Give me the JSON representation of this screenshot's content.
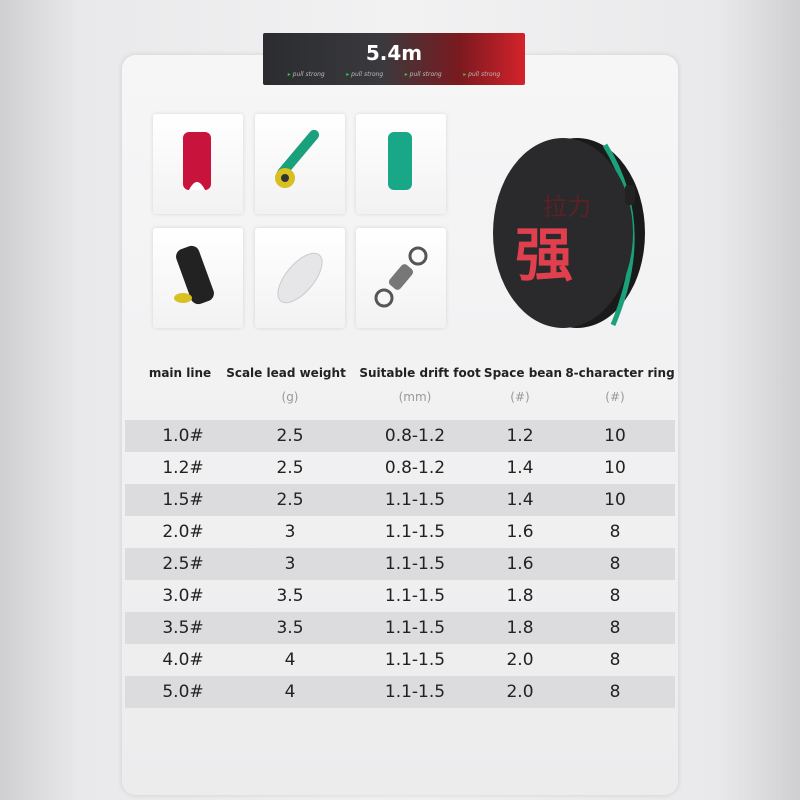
{
  "banner": {
    "title": "5.4m",
    "taglines": [
      "pull strong",
      "pull strong",
      "pull strong",
      "pull strong"
    ]
  },
  "products": [
    {
      "name": "red-space-bean",
      "color": "#c8143c"
    },
    {
      "name": "float-seat",
      "color": "#1aa07a"
    },
    {
      "name": "green-space-bean",
      "color": "#18a888"
    },
    {
      "name": "black-lead-seat",
      "color": "#222222"
    },
    {
      "name": "clear-bead",
      "color": "#dddddd"
    },
    {
      "name": "swivel-ring",
      "color": "#888888"
    }
  ],
  "reel": {
    "logo_text": "强",
    "subtitle_text": "拉力",
    "brand_color": "#e0404e"
  },
  "table": {
    "headers": [
      "main line",
      "Scale lead weight",
      "Suitable drift foot",
      "Space bean",
      "8-character ring"
    ],
    "units": [
      "",
      "(g)",
      "(mm)",
      "(#)",
      "(#)"
    ],
    "rows": [
      [
        "1.0#",
        "2.5",
        "0.8-1.2",
        "1.2",
        "10"
      ],
      [
        "1.2#",
        "2.5",
        "0.8-1.2",
        "1.4",
        "10"
      ],
      [
        "1.5#",
        "2.5",
        "1.1-1.5",
        "1.4",
        "10"
      ],
      [
        "2.0#",
        "3",
        "1.1-1.5",
        "1.6",
        "8"
      ],
      [
        "2.5#",
        "3",
        "1.1-1.5",
        "1.6",
        "8"
      ],
      [
        "3.0#",
        "3.5",
        "1.1-1.5",
        "1.8",
        "8"
      ],
      [
        "3.5#",
        "3.5",
        "1.1-1.5",
        "1.8",
        "8"
      ],
      [
        "4.0#",
        "4",
        "1.1-1.5",
        "2.0",
        "8"
      ],
      [
        "5.0#",
        "4",
        "1.1-1.5",
        "2.0",
        "8"
      ]
    ]
  }
}
